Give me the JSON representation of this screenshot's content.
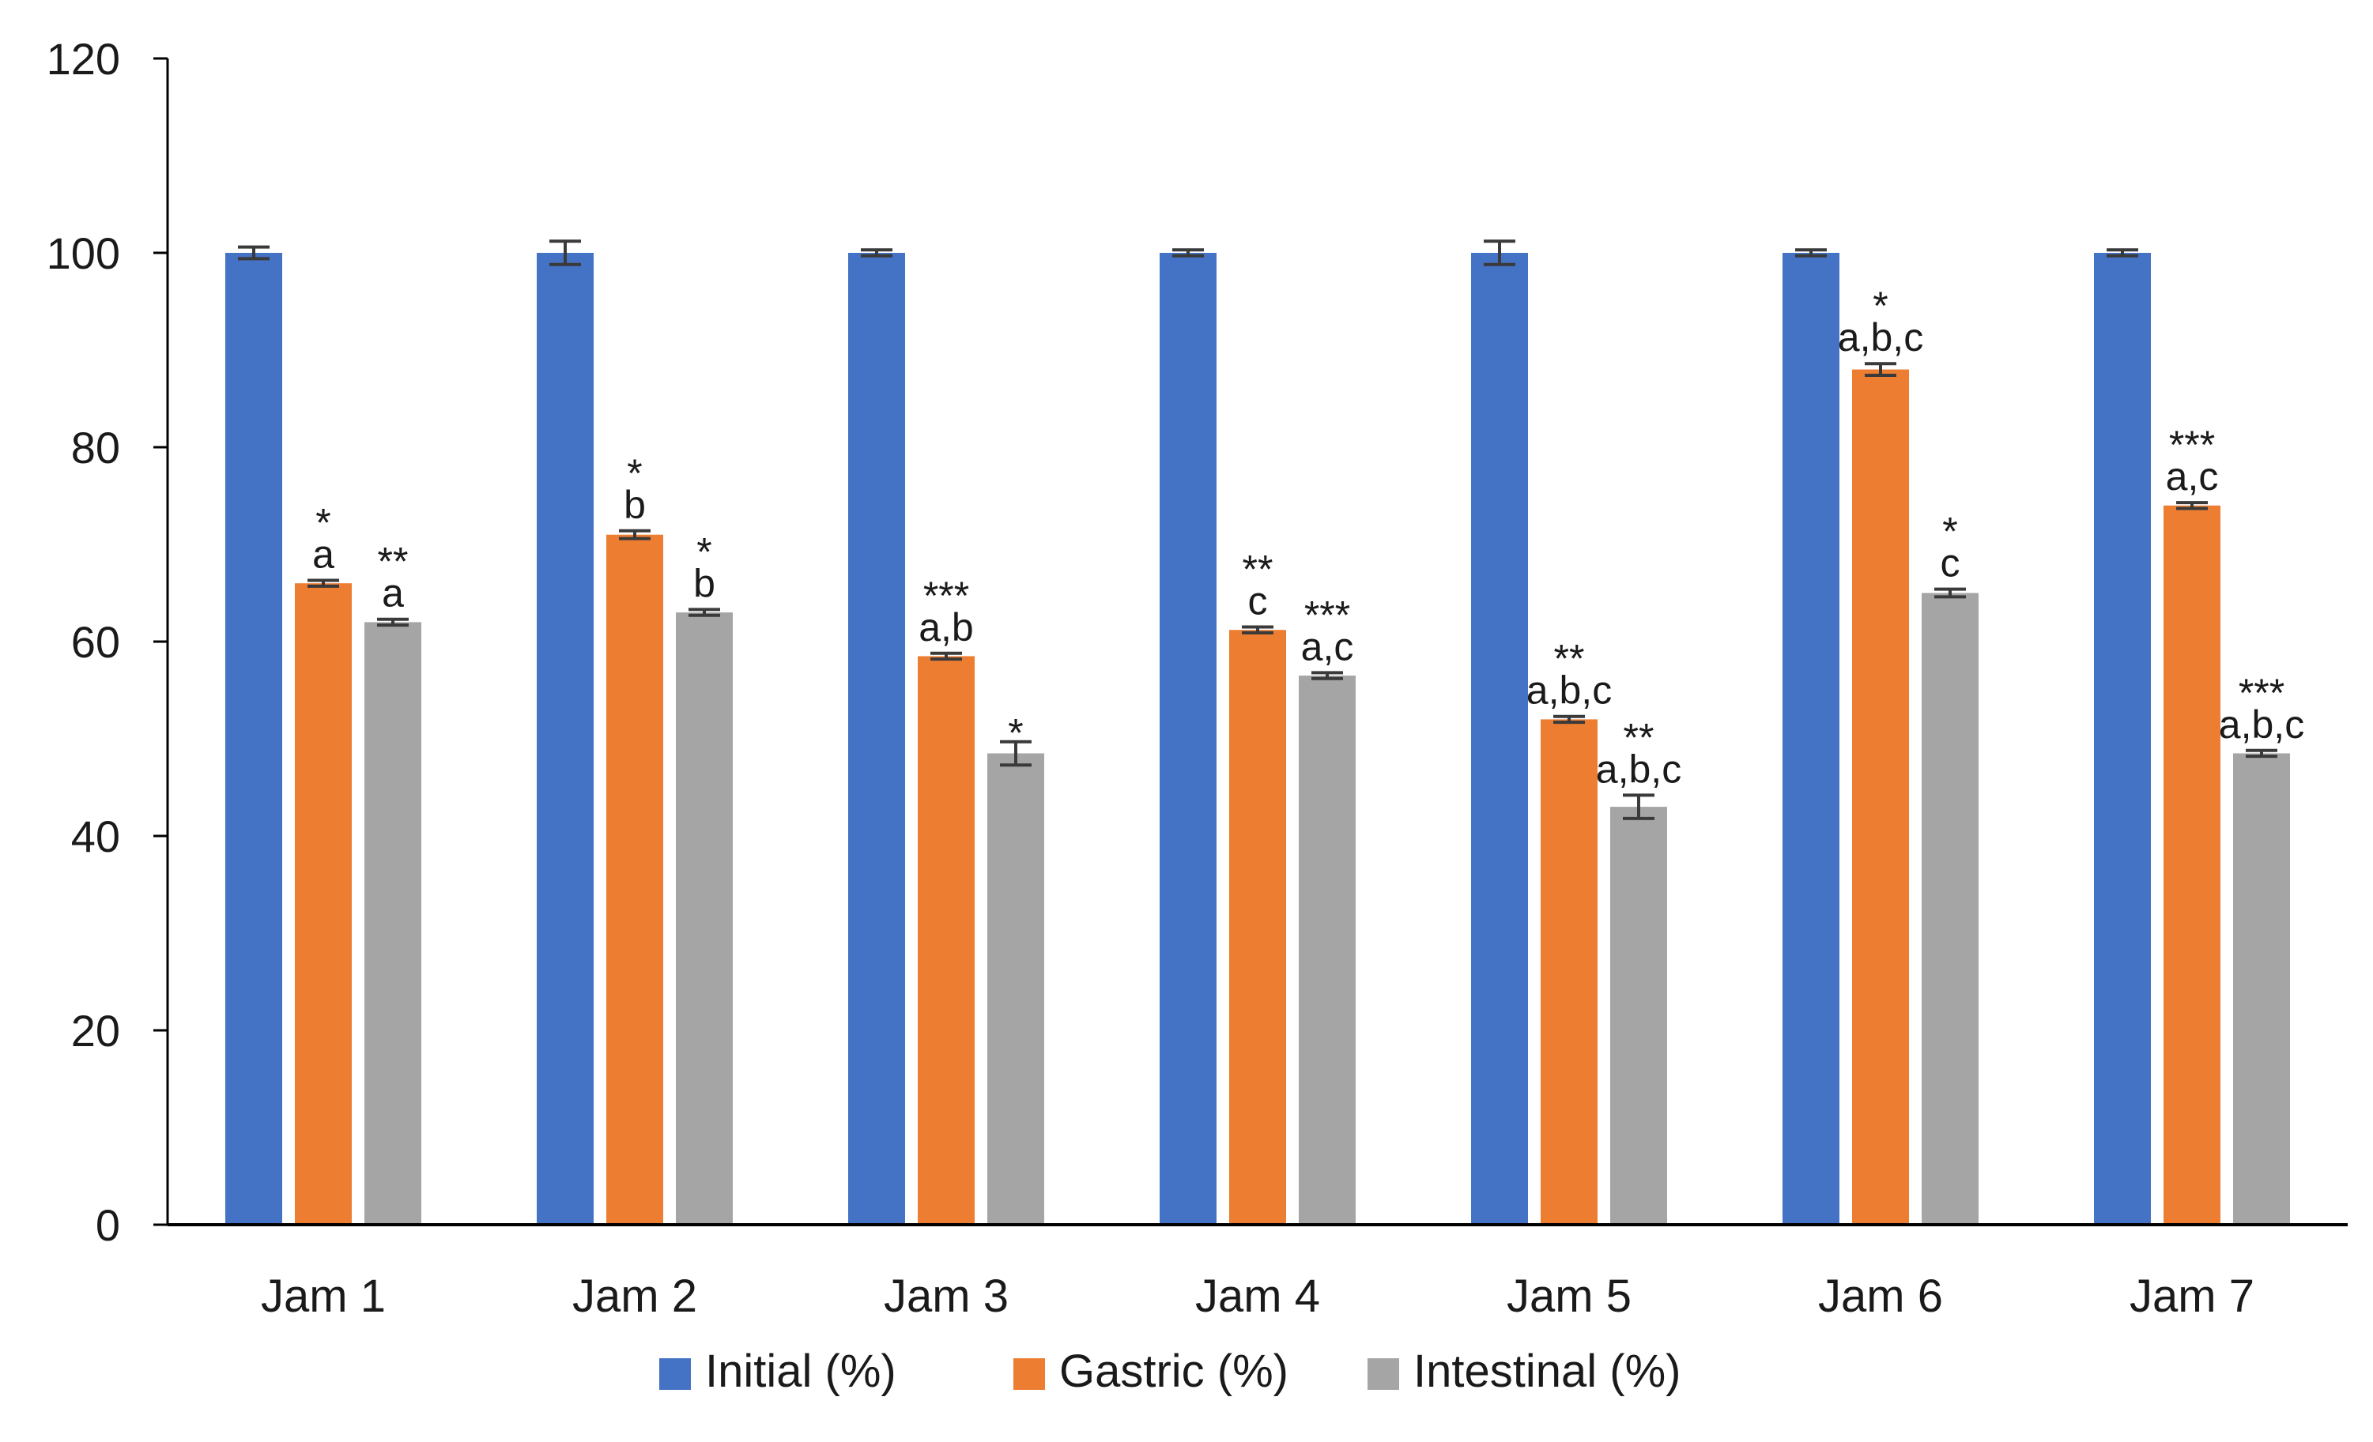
{
  "chart_data": {
    "type": "bar",
    "title": "",
    "xlabel": "",
    "ylabel": "",
    "ylim": [
      0,
      120
    ],
    "yticks": [
      0,
      20,
      40,
      60,
      80,
      100,
      120
    ],
    "grid": false,
    "legend_position": "bottom",
    "categories": [
      "Jam 1",
      "Jam 2",
      "Jam 3",
      "Jam 4",
      "Jam 5",
      "Jam 6",
      "Jam 7"
    ],
    "series": [
      {
        "name": "Initial (%)",
        "color": "#4472C4",
        "values": [
          100,
          100,
          100,
          100,
          100,
          100,
          100
        ],
        "errors": [
          0.6,
          1.2,
          0.3,
          0.3,
          1.2,
          0.3,
          0.3
        ],
        "annotations": [
          [],
          [],
          [],
          [],
          [],
          [],
          []
        ]
      },
      {
        "name": "Gastric (%)",
        "color": "#ED7D31",
        "values": [
          66,
          71,
          58.5,
          61.2,
          52,
          88,
          74
        ],
        "errors": [
          0.3,
          0.4,
          0.3,
          0.3,
          0.3,
          0.6,
          0.3
        ],
        "annotations": [
          [
            "*",
            "a"
          ],
          [
            "*",
            "b"
          ],
          [
            "***",
            "a,b"
          ],
          [
            "**",
            "c"
          ],
          [
            "**",
            "a,b,c"
          ],
          [
            "*",
            "a,b,c"
          ],
          [
            "***",
            "a,c"
          ]
        ]
      },
      {
        "name": "Intestinal (%)",
        "color": "#A5A5A5",
        "values": [
          62,
          63,
          48.5,
          56.5,
          43,
          65,
          48.5
        ],
        "errors": [
          0.3,
          0.3,
          1.2,
          0.3,
          1.2,
          0.4,
          0.3
        ],
        "annotations": [
          [
            "**",
            "a"
          ],
          [
            "*",
            "b"
          ],
          [
            "*"
          ],
          [
            "***",
            "a,c"
          ],
          [
            "**",
            "a,b,c"
          ],
          [
            "*",
            "c"
          ],
          [
            "***",
            "a,b,c"
          ]
        ]
      }
    ]
  }
}
